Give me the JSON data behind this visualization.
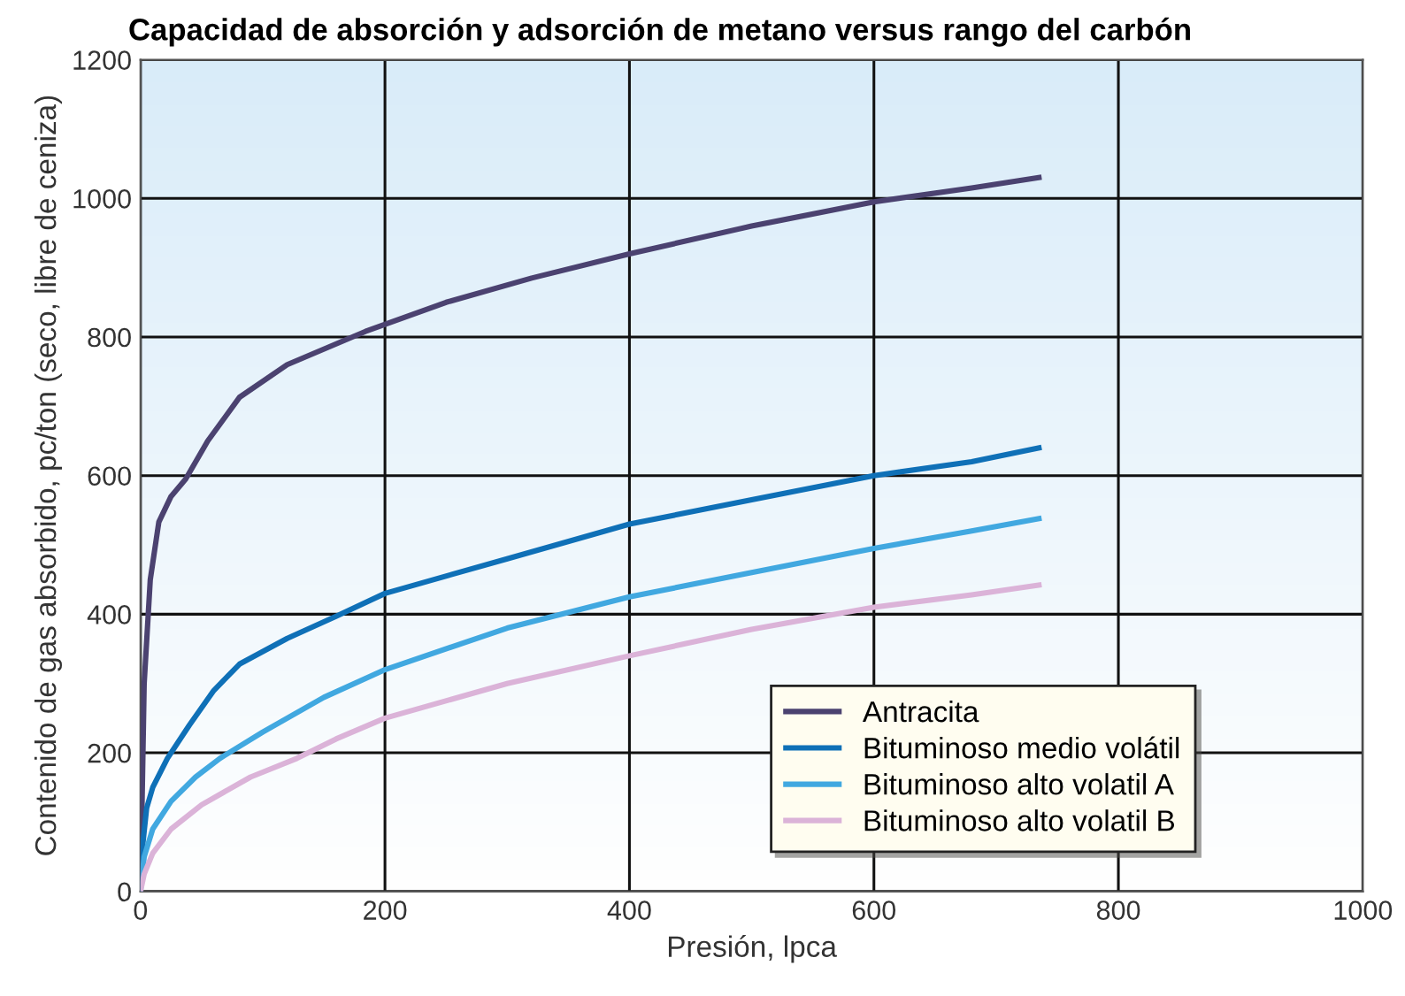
{
  "chart_data": {
    "type": "line",
    "title": "Capacidad de absorción y adsorción de metano versus rango del carbón",
    "xlabel": "Presión, lpca",
    "ylabel": "Contenido de gas absorbido, pc/ton (seco, libre de ceniza)",
    "xlim": [
      0,
      1000
    ],
    "ylim": [
      0,
      1200
    ],
    "xticks": [
      0,
      200,
      400,
      600,
      800,
      1000
    ],
    "yticks": [
      0,
      200,
      400,
      600,
      800,
      1000,
      1200
    ],
    "grid": true,
    "legend": "bottom right",
    "line_style": "solid",
    "marker": "none",
    "series": [
      {
        "name": "Antracita",
        "color": "#4b4270",
        "x": [
          0,
          3,
          8,
          15,
          25,
          37,
          55,
          81,
          120,
          184,
          250,
          320,
          400,
          500,
          600,
          680,
          735
        ],
        "values": [
          0,
          300,
          450,
          533,
          570,
          595,
          650,
          713,
          760,
          808,
          850,
          885,
          920,
          960,
          995,
          1015,
          1030
        ]
      },
      {
        "name": "Bituminoso medio volátil",
        "color": "#0f70b7",
        "x": [
          0,
          2,
          5,
          10,
          22,
          40,
          60,
          81,
          120,
          160,
          200,
          300,
          400,
          500,
          600,
          680,
          735
        ],
        "values": [
          0,
          70,
          120,
          150,
          192,
          240,
          290,
          328,
          365,
          397,
          430,
          480,
          530,
          565,
          600,
          620,
          640
        ]
      },
      {
        "name": "Bituminoso alto volatil A",
        "color": "#41a8e0",
        "x": [
          0,
          3,
          10,
          25,
          45,
          65,
          100,
          150,
          200,
          300,
          400,
          500,
          600,
          680,
          735
        ],
        "values": [
          0,
          50,
          90,
          130,
          165,
          192,
          230,
          280,
          320,
          380,
          425,
          460,
          495,
          520,
          538
        ]
      },
      {
        "name": "Bituminoso alto volatil B",
        "color": "#dbb3d8",
        "x": [
          0,
          3,
          10,
          25,
          50,
          90,
          128,
          160,
          200,
          300,
          400,
          500,
          600,
          680,
          735
        ],
        "values": [
          0,
          25,
          55,
          90,
          125,
          165,
          192,
          220,
          250,
          300,
          340,
          378,
          410,
          428,
          442
        ]
      }
    ]
  }
}
